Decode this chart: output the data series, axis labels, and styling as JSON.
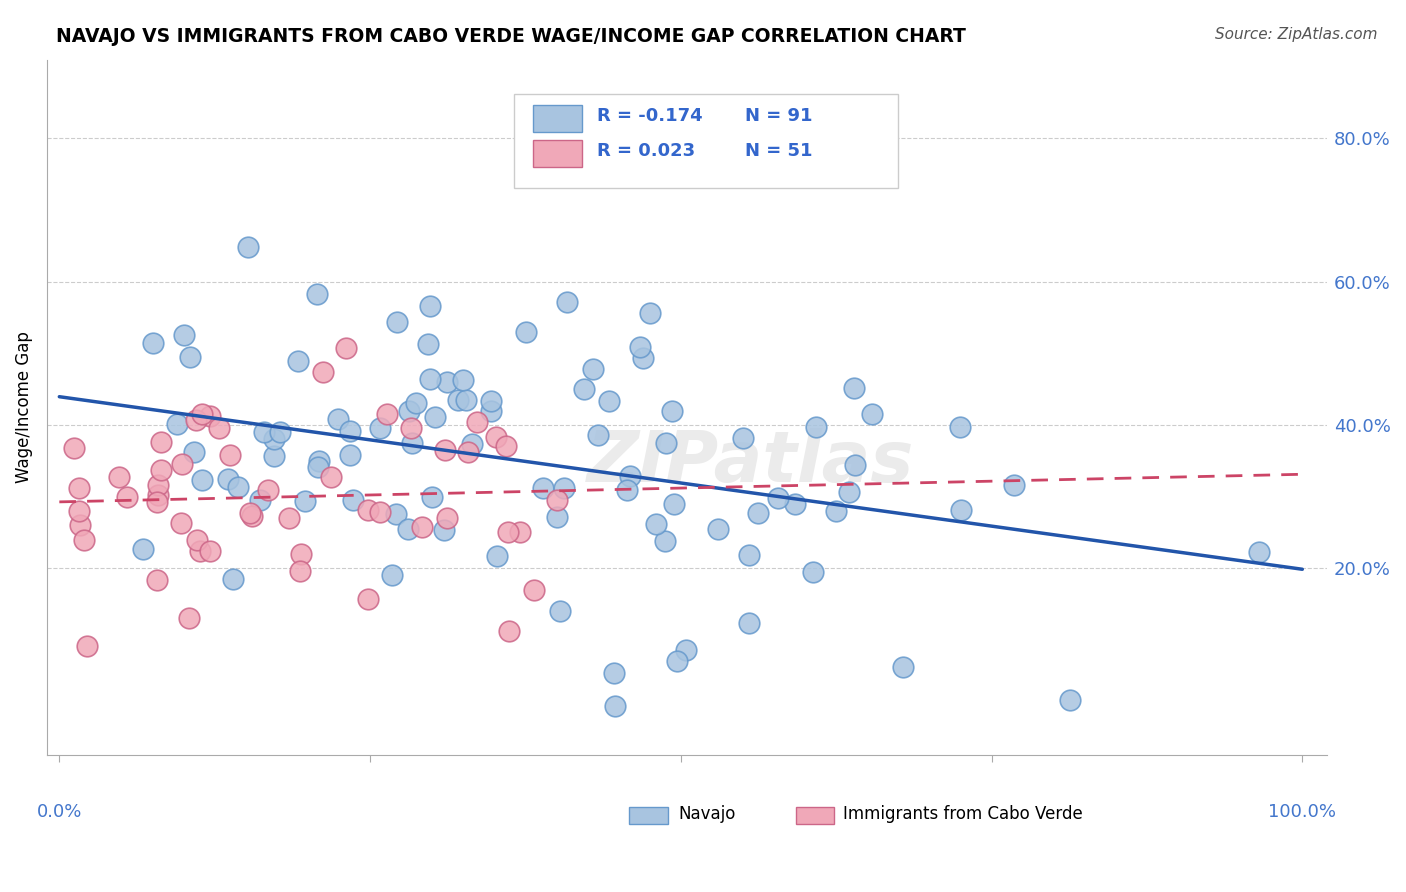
{
  "title": "NAVAJO VS IMMIGRANTS FROM CABO VERDE WAGE/INCOME GAP CORRELATION CHART",
  "source": "Source: ZipAtlas.com",
  "ylabel": "Wage/Income Gap",
  "ytick_values": [
    0.2,
    0.4,
    0.6,
    0.8
  ],
  "ytick_labels": [
    "20.0%",
    "40.0%",
    "60.0%",
    "80.0%"
  ],
  "xlim": [
    0.0,
    1.0
  ],
  "ylim": [
    -0.06,
    0.91
  ],
  "legend_r_blue": "R = -0.174",
  "legend_n_blue": "N = 91",
  "legend_r_pink": "R = 0.023",
  "legend_n_pink": "N = 51",
  "watermark": "ZIPatlas",
  "navajo_color": "#a8c4e0",
  "navajo_edge": "#6699cc",
  "cabo_verde_color": "#f0a8b8",
  "cabo_verde_edge": "#cc6688",
  "nav_r": -0.174,
  "nav_n": 91,
  "cabo_r": 0.023,
  "cabo_n": 51
}
